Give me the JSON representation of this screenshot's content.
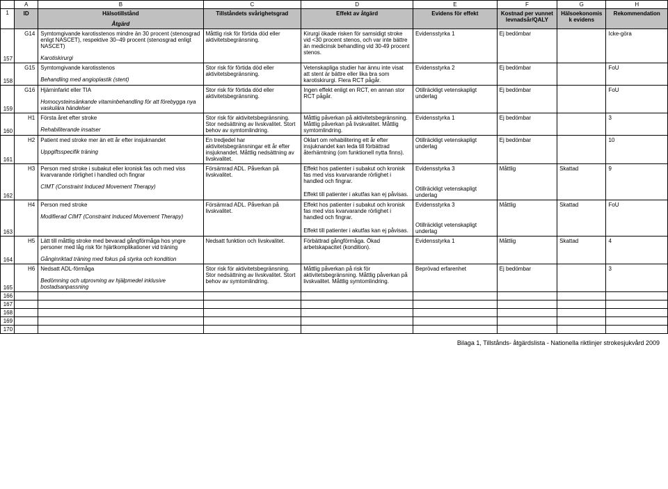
{
  "columns": {
    "letters": [
      "",
      "A",
      "B",
      "C",
      "D",
      "E",
      "F",
      "G",
      "H"
    ],
    "widths": [
      20,
      34,
      236,
      140,
      160,
      120,
      86,
      70,
      88
    ]
  },
  "header": {
    "row": "1",
    "id": "ID",
    "halsotillstand": "Hälsotillstånd",
    "atgard": "Åtgärd",
    "svarighet": "Tillståndets svårighetsgrad",
    "effekt": "Effekt av åtgärd",
    "evidens_effekt": "Evidens för effekt",
    "kostnad": "Kostnad per vunnet levnadsår/QALY",
    "halsoekonomisk": "Hälsoekonomisk evidens",
    "rekommendation": "Rekommendation"
  },
  "rows": [
    {
      "num": "157",
      "id": "G14",
      "condition": "Symtomgivande karotisstenos mindre än 30 procent (stenosgrad enligt NASCET), respektive 30–49 procent (stenosgrad enligt NASCET)",
      "action": "Karotiskirurgi",
      "severity": "Måttlig risk för förtida död eller aktivitetsbegränsning.",
      "effect": "Kirurgi ökade risken för samsidigt stroke vid <30 procent stenos, och var inte bättre än medicinsk behandling vid 30-49 procent stenos.",
      "evidence_effect": "Evidensstyrka 1",
      "cost": "Ej bedömbar",
      "econ": "",
      "rec": "Icke-göra"
    },
    {
      "num": "158",
      "id": "G15",
      "condition": "Symtomgivande karotisstenos",
      "action": "Behandling med angioplastik (stent)",
      "severity": "Stor risk för förtida död eller aktivitetsbegränsning.",
      "effect": "Vetenskapliga studier har ännu inte visat att stent är bättre eller lika bra som karotiskirurgi. Flera RCT pågår.",
      "evidence_effect": "Evidensstyrka 2",
      "cost": "Ej bedömbar",
      "econ": "",
      "rec": "FoU"
    },
    {
      "num": "159",
      "id": "G16",
      "condition": "Hjärninfarkt eller TIA",
      "action": "Homocysteinsänkande vitaminbehandling för att förebygga nya vaskulära händelser",
      "severity": "Stor risk för förtida död eller aktivitetsbegränsning.",
      "effect": "Ingen effekt enligt en RCT, en annan stor RCT pågår.",
      "evidence_effect": "Otillräckligt vetenskapligt underlag",
      "cost": "Ej bedömbar",
      "econ": "",
      "rec": "FoU"
    },
    {
      "num": "160",
      "id": "H1",
      "condition": "Första året efter stroke",
      "action": "Rehabiliterande insatser",
      "severity": "Stor risk för aktivitetsbegränsning. Stor nedsättning av livskvalitet. Stort behov av symtomlindring.",
      "effect": "Måttlig påverkan på aktivitetsbegränsning. Måttlig påverkan på livskvalitet. Måttlig symtomlindring.",
      "evidence_effect": "Evidensstyrka 1",
      "cost": "Ej bedömbar",
      "econ": "",
      "rec": "3"
    },
    {
      "num": "161",
      "id": "H2",
      "condition": "Patient med stroke mer än ett år efter insjuknandet",
      "action": "Uppgiftsspecifik träning",
      "severity": "En tredjedel har aktivitetsbegränsningar ett år efter insjuknandet. Måttlig nedsättning av livskvalitet.",
      "effect": "Oklart om rehabilitering ett år efter insjuknandet kan leda till förbättrad återhämtning (om funktionell nytta finns).",
      "evidence_effect": "Otillräckligt vetenskapligt underlag",
      "cost": "Ej bedömbar",
      "econ": "",
      "rec": "10"
    },
    {
      "num": "162",
      "id": "H3",
      "condition": "Person med stroke i subakut eller kronisk fas och med viss kvarvarande rörlighet i handled och fingrar",
      "action": "CIMT (Constraint Induced Movement Therapy)",
      "severity": "Försämrad ADL. Påverkan på livskvalitet.",
      "effect_a": "Effekt hos patienter i subakut och kronisk fas med viss kvarvarande rörlighet i handled och fingrar.",
      "effect_b": "Effekt till patienter i akutfas kan ej påvisas.",
      "evidence_effect_a": "Evidensstyrka 3",
      "evidence_effect_b": "Otillräckligt vetenskapligt underlag",
      "cost": "Måttlig",
      "econ": "Skattad",
      "rec": "9"
    },
    {
      "num": "163",
      "id": "H4",
      "condition": "Person med stroke",
      "action": "Modifierad CIMT (Constraint Induced Movement Therapy)",
      "severity": "Försämrad ADL. Påverkan på livskvalitet.",
      "effect_a": "Effekt hos patienter i subakut och kronisk fas med viss kvarvarande rörlighet i handled och fingrar.",
      "effect_b": "Effekt till patienter i akutfas kan ej påvisas.",
      "evidence_effect_a": "Evidensstyrka 3",
      "evidence_effect_b": "Otillräckligt vetenskapligt underlag",
      "cost": "Måttlig",
      "econ": "Skattad",
      "rec": "FoU"
    },
    {
      "num": "164",
      "id": "H5",
      "condition": "Lätt till måttlig stroke med bevarad gångförmåga hos yngre personer med låg risk för hjärtkomplikationer vid träning",
      "action": "Gånginriktad träning med fokus på styrka och kondition",
      "severity": "Nedsatt funktion och livskvalitet.",
      "effect": "Förbättrad gångförmåga. Ökad arbetskapacitet (kondition).",
      "evidence_effect": "Evidensstyrka 1",
      "cost": "Måttlig",
      "econ": "Skattad",
      "rec": "4"
    },
    {
      "num": "165",
      "id": "H6",
      "condition": "Nedsatt ADL-förmåga",
      "action": "Bedömning och utprovning av hjälpmedel inklusive bostadsanpassning",
      "severity": "Stor risk för aktivitetsbegränsning. Stor nedsättning av livskvalitet. Stort behov av symtomlindring.",
      "effect": "Måttlig påverkan på risk för aktivitetsbegränsning. Måttlig påverkan på livskvalitet. Måttlig symtomlindring.",
      "evidence_effect": "Beprövad erfarenhet",
      "cost": "Ej bedömbar",
      "econ": "",
      "rec": "3"
    }
  ],
  "empty_rows": [
    "166",
    "167",
    "168",
    "169",
    "170"
  ],
  "footer": "Bilaga 1, Tillstånds- åtgärdslista - Nationella riktlinjer strokesjukvård 2009"
}
